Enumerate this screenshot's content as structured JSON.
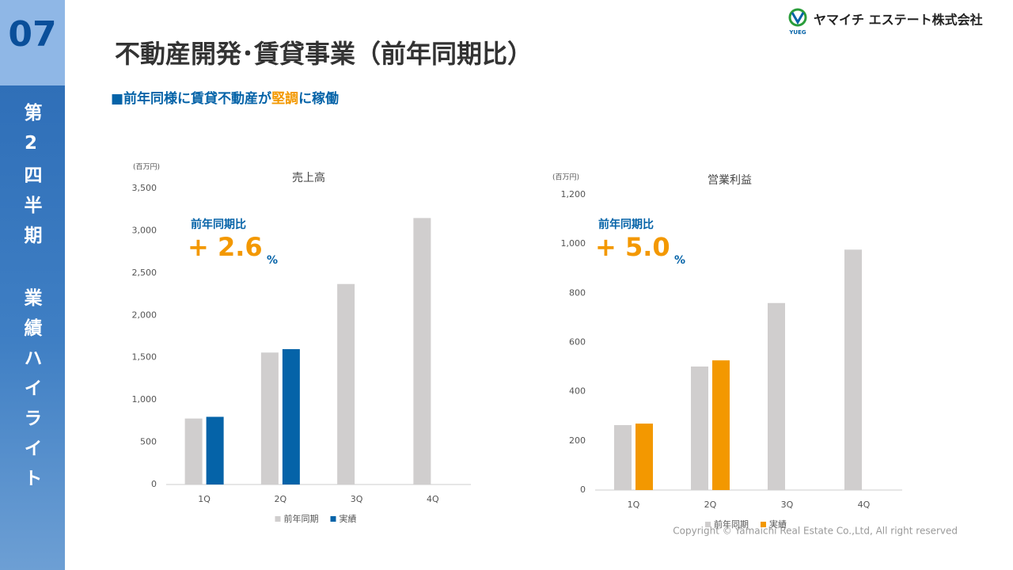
{
  "slide_number": "07",
  "section": "第2四半期 業績ハイライト",
  "company": "ヤマイチ エステート株式会社",
  "logo_text": "YUEG",
  "title": "不動産開発･賃貸事業（前年同期比）",
  "subtitle": {
    "lead": "■前年同様に賃貸不動産が",
    "highlight": "堅調",
    "tail": "に稼働"
  },
  "copyright": "Copyright © Yamaichi Real Estate Co.,Ltd, All right reserved",
  "chart_data": [
    {
      "type": "bar",
      "title": "売上高",
      "y_unit": "(百万円)",
      "categories": [
        "1Q",
        "2Q",
        "3Q",
        "4Q"
      ],
      "series": [
        {
          "name": "前年同期",
          "color": "#d0cece",
          "values": [
            780,
            1560,
            2370,
            3150
          ]
        },
        {
          "name": "実績",
          "color": "#0563a8",
          "values": [
            800,
            1600,
            null,
            null
          ]
        }
      ],
      "ylim": [
        0,
        3500
      ],
      "yticks": [
        0,
        500,
        {
          "value": 1000,
          "label": "1,000"
        },
        {
          "value": 1500,
          "label": "1,500"
        },
        {
          "value": 2000,
          "label": "2,000"
        },
        {
          "value": 2500,
          "label": "2,500"
        },
        {
          "value": 3000,
          "label": "3,000"
        },
        {
          "value": 3500,
          "label": "3,500"
        }
      ],
      "grid": false,
      "legend": "bottom",
      "annotation": {
        "label": "前年同期比",
        "value": "+ 2.6",
        "unit": "%"
      }
    },
    {
      "type": "bar",
      "title": "営業利益",
      "y_unit": "(百万円)",
      "categories": [
        "1Q",
        "2Q",
        "3Q",
        "4Q"
      ],
      "series": [
        {
          "name": "前年同期",
          "color": "#d0cece",
          "values": [
            264,
            502,
            760,
            977
          ]
        },
        {
          "name": "実績",
          "color": "#f39800",
          "values": [
            270,
            527,
            null,
            null
          ]
        }
      ],
      "ylim": [
        0,
        1200
      ],
      "yticks": [
        0,
        200,
        400,
        600,
        800,
        {
          "value": 1000,
          "label": "1,000"
        },
        {
          "value": 1200,
          "label": "1,200"
        }
      ],
      "grid": false,
      "legend": "bottom",
      "annotation": {
        "label": "前年同期比",
        "value": "+ 5.0",
        "unit": "%"
      }
    }
  ]
}
